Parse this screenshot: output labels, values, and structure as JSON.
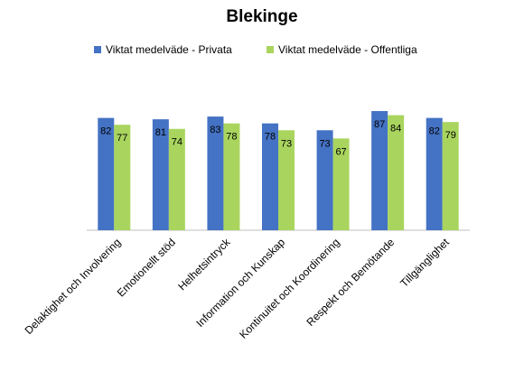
{
  "chart_data": {
    "type": "bar",
    "title": "Blekinge",
    "categories": [
      "Delaktighet och Involvering",
      "Emotionellt stöd",
      "Helhetsintryck",
      "Information och Kunskap",
      "Kontinuitet och Koordinering",
      "Respekt och Bemötande",
      "Tillgänglighet"
    ],
    "series": [
      {
        "name": "Viktat medelväde - Privata",
        "values": [
          82,
          81,
          83,
          78,
          73,
          87,
          82
        ],
        "color": "#4472C4"
      },
      {
        "name": "Viktat medelväde - Offentliga",
        "values": [
          77,
          74,
          78,
          73,
          67,
          84,
          79
        ],
        "color": "#A9D55E"
      }
    ],
    "xlabel": "",
    "ylabel": "",
    "ylim": [
      0,
      100
    ],
    "grid": false,
    "legend_position": "top",
    "data_labels": true
  }
}
